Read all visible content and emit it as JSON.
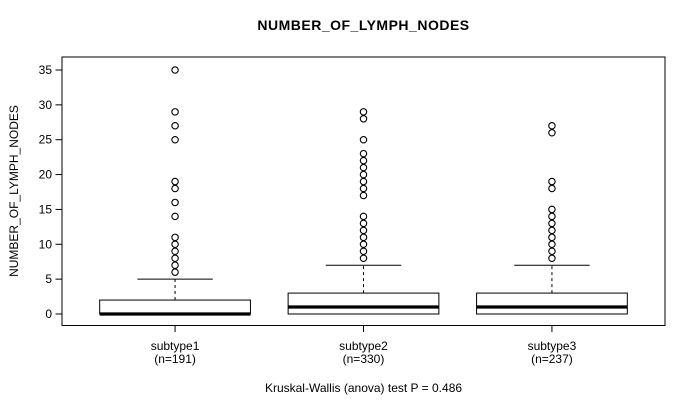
{
  "title": "NUMBER_OF_LYMPH_NODES",
  "caption": "Kruskal-Wallis (anova) test P = 0.486",
  "colors": {
    "foreground": "#000000",
    "background": "#ffffff"
  },
  "chart_data": {
    "type": "boxplot",
    "title": "NUMBER_OF_LYMPH_NODES",
    "xlabel": "",
    "ylabel": "NUMBER_OF_LYMPH_NODES",
    "ylim": [
      0,
      35
    ],
    "yticks": [
      0,
      5,
      10,
      15,
      20,
      25,
      30,
      35
    ],
    "grid": false,
    "legend": "none",
    "annotation": "Kruskal-Wallis (anova) test P = 0.486",
    "groups": [
      {
        "label": "subtype1",
        "sublabel": "(n=191)",
        "n": 191,
        "q1": 0,
        "median": 0,
        "q3": 2,
        "whisker_low": 0,
        "whisker_high": 5,
        "outliers": [
          6,
          7,
          8,
          9,
          10,
          11,
          14,
          16,
          18,
          19,
          25,
          27,
          29,
          35
        ]
      },
      {
        "label": "subtype2",
        "sublabel": "(n=330)",
        "n": 330,
        "q1": 0,
        "median": 1,
        "q3": 3,
        "whisker_low": 0,
        "whisker_high": 7,
        "outliers": [
          8,
          9,
          10,
          11,
          12,
          13,
          14,
          17,
          18,
          19,
          20,
          21,
          22,
          23,
          25,
          28,
          29
        ]
      },
      {
        "label": "subtype3",
        "sublabel": "(n=237)",
        "n": 237,
        "q1": 0,
        "median": 1,
        "q3": 3,
        "whisker_low": 0,
        "whisker_high": 7,
        "outliers": [
          8,
          9,
          10,
          11,
          12,
          13,
          14,
          15,
          18,
          19,
          26,
          27
        ]
      }
    ]
  }
}
